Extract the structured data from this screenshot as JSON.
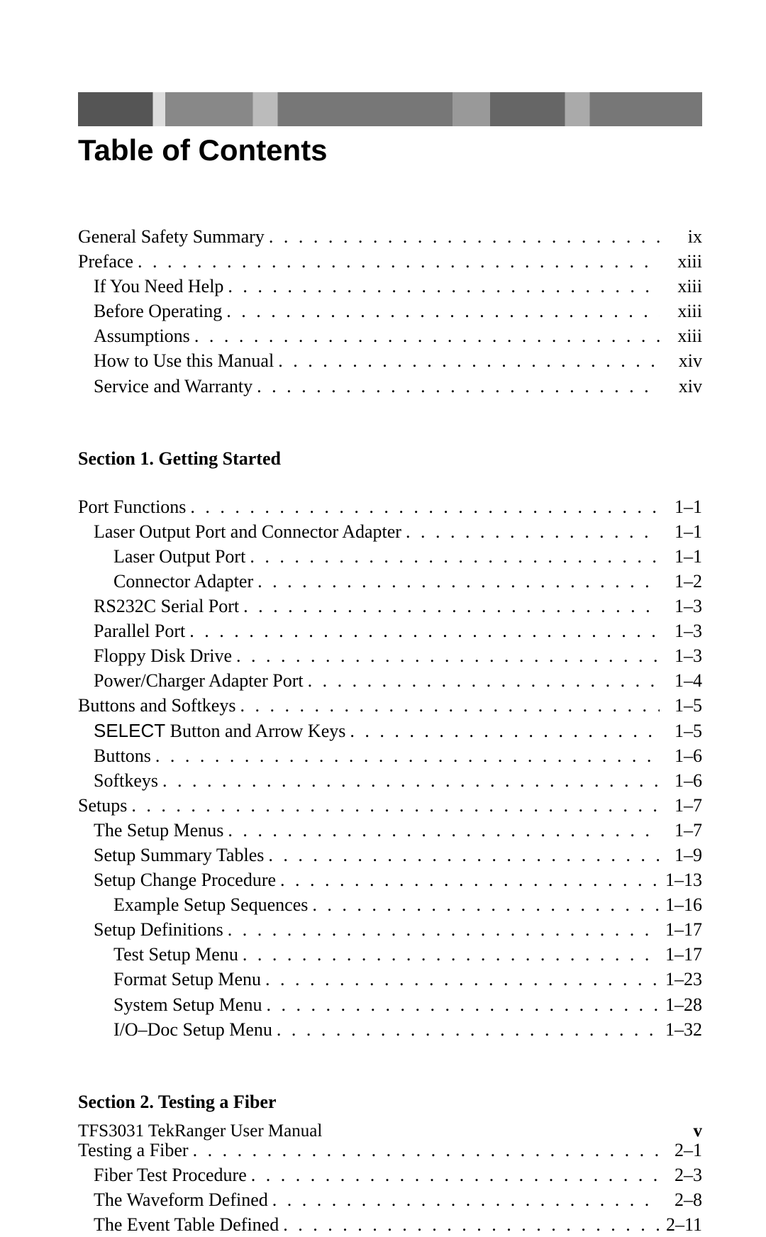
{
  "heading": "Table of Contents",
  "front": [
    {
      "label": "General Safety Summary",
      "page": "ix",
      "level": 0
    },
    {
      "label": "Preface",
      "page": "xiii",
      "level": 0
    },
    {
      "label": "If You Need Help",
      "page": "xiii",
      "level": 1
    },
    {
      "label": "Before Operating",
      "page": "xiii",
      "level": 1
    },
    {
      "label": "Assumptions",
      "page": "xiii",
      "level": 1
    },
    {
      "label": "How to Use this Manual",
      "page": "xiv",
      "level": 1
    },
    {
      "label": "Service and Warranty",
      "page": "xiv",
      "level": 1
    }
  ],
  "section1_title": "Section 1. Getting Started",
  "section1": [
    {
      "label": "Port Functions",
      "page": "1–1",
      "level": 0
    },
    {
      "label": "Laser Output Port and Connector Adapter",
      "page": "1–1",
      "level": 1
    },
    {
      "label": "Laser Output Port",
      "page": "1–1",
      "level": 2
    },
    {
      "label": "Connector Adapter",
      "page": "1–2",
      "level": 2
    },
    {
      "label": "RS232C Serial Port",
      "page": "1–3",
      "level": 1
    },
    {
      "label": "Parallel Port",
      "page": "1–3",
      "level": 1
    },
    {
      "label": "Floppy Disk Drive",
      "page": "1–3",
      "level": 1
    },
    {
      "label": "Power/Charger Adapter Port",
      "page": "1–4",
      "level": 1
    },
    {
      "label": "Buttons and Softkeys",
      "page": "1–5",
      "level": 0
    },
    {
      "label": "SELECT Button and Arrow Keys",
      "page": "1–5",
      "level": 1,
      "mixed": {
        "sans": "SELECT",
        "rest": " Button and Arrow Keys"
      }
    },
    {
      "label": "Buttons",
      "page": "1–6",
      "level": 1
    },
    {
      "label": "Softkeys",
      "page": "1–6",
      "level": 1
    },
    {
      "label": "Setups",
      "page": "1–7",
      "level": 0
    },
    {
      "label": "The Setup Menus",
      "page": "1–7",
      "level": 1
    },
    {
      "label": "Setup Summary Tables",
      "page": "1–9",
      "level": 1
    },
    {
      "label": "Setup Change Procedure",
      "page": "1–13",
      "level": 1
    },
    {
      "label": "Example Setup Sequences",
      "page": "1–16",
      "level": 2
    },
    {
      "label": "Setup Definitions",
      "page": "1–17",
      "level": 1
    },
    {
      "label": "Test Setup Menu",
      "page": "1–17",
      "level": 2
    },
    {
      "label": "Format Setup Menu",
      "page": "1–23",
      "level": 2
    },
    {
      "label": "System Setup Menu",
      "page": "1–28",
      "level": 2
    },
    {
      "label": "I/O–Doc Setup Menu",
      "page": "1–32",
      "level": 2
    }
  ],
  "section2_title": "Section 2. Testing a Fiber",
  "section2": [
    {
      "label": "Testing a Fiber",
      "page": "2–1",
      "level": 0
    },
    {
      "label": "Fiber Test Procedure",
      "page": "2–3",
      "level": 1
    },
    {
      "label": "The Waveform Defined",
      "page": "2–8",
      "level": 1
    },
    {
      "label": "The Event Table Defined",
      "page": "2–11",
      "level": 1
    }
  ],
  "footer_left": "TFS3031 TekRanger User Manual",
  "footer_right": "v"
}
